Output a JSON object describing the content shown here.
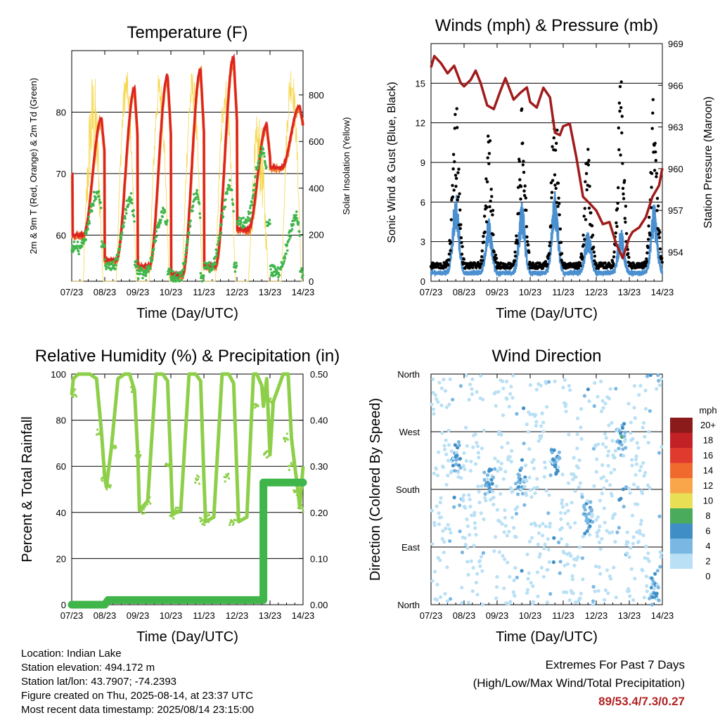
{
  "x_ticks": [
    "07/23",
    "08/23",
    "09/23",
    "10/23",
    "11/23",
    "12/23",
    "13/23",
    "14/23"
  ],
  "xlabel": "Time (Day/UTC)",
  "chart_data": [
    {
      "type": "line",
      "title": "Temperature (F)",
      "xlabel": "Time (Day/UTC)",
      "ylabel": "2m & 9m T (Red, Orange) & 2m Td (Green)",
      "ylabel_right": "Solar Insolation (Yellow)",
      "ylim": [
        52.5,
        90
      ],
      "ylim_right": [
        0,
        990
      ],
      "yticks": [
        60,
        70,
        80
      ],
      "yticks_right": [
        0,
        200,
        400,
        600,
        800
      ],
      "colors": {
        "t2m": "#dd2222",
        "t9m": "#f07b2a",
        "td": "#3fb54a",
        "solar": "#f5d64a"
      },
      "daily": [
        {
          "day": "07/23",
          "t_max": 70,
          "t_min": 61.5,
          "td_max": 67,
          "td_min": 60,
          "solar_max": 0
        },
        {
          "day": "08/23",
          "t_max": 79,
          "t_min": 60,
          "td_max": 67,
          "td_min": 58,
          "solar_max": 925
        },
        {
          "day": "09/23",
          "t_max": 84,
          "t_min": 56,
          "td_max": 66,
          "td_min": 55,
          "solar_max": 920
        },
        {
          "day": "10/23",
          "t_max": 86,
          "t_min": 55,
          "td_max": 64,
          "td_min": 54,
          "solar_max": 900
        },
        {
          "day": "11/23",
          "t_max": 87,
          "t_min": 53.5,
          "td_max": 67,
          "td_min": 53,
          "solar_max": 910
        },
        {
          "day": "12/23",
          "t_max": 89,
          "t_min": 55,
          "td_max": 68,
          "td_min": 55,
          "solar_max": 880
        },
        {
          "day": "13/23",
          "t_max": 78,
          "t_min": 61,
          "td_max": 74,
          "td_min": 62,
          "solar_max": 740
        },
        {
          "day": "14/23",
          "t_max": 81,
          "t_min": 71,
          "td_max": 63,
          "td_min": 54,
          "solar_max": 950
        }
      ]
    },
    {
      "type": "scatter",
      "title": "Winds (mph) & Pressure (mb)",
      "xlabel": "Time (Day/UTC)",
      "ylabel": "Sonic Wind & Gust (Blue, Black)",
      "ylabel_right": "Station Pressure (Maroon)",
      "ylim": [
        0,
        18
      ],
      "yticks": [
        0,
        3,
        6,
        9,
        12,
        15
      ],
      "ylim_right": [
        951.9,
        969
      ],
      "yticks_right": [
        954,
        957,
        960,
        963,
        966,
        969
      ],
      "colors": {
        "wind": "#4a90d0",
        "gust": "#000000",
        "pressure": "#a01c1c"
      },
      "daily": [
        {
          "day": "07/23",
          "wind_max": 2,
          "gust_max": 4
        },
        {
          "day": "08/23",
          "wind_max": 7,
          "gust_max": 14
        },
        {
          "day": "09/23",
          "wind_max": 5,
          "gust_max": 11
        },
        {
          "day": "10/23",
          "wind_max": 6,
          "gust_max": 13
        },
        {
          "day": "11/23",
          "wind_max": 7,
          "gust_max": 14
        },
        {
          "day": "12/23",
          "wind_max": 4,
          "gust_max": 10
        },
        {
          "day": "13/23",
          "wind_max": 4,
          "gust_max": 15
        },
        {
          "day": "14/23",
          "wind_max": 6,
          "gust_max": 15
        }
      ],
      "pressure": {
        "x": [
          0,
          0.1,
          0.3,
          0.5,
          0.7,
          0.9,
          1.0,
          1.2,
          1.35,
          1.5,
          1.7,
          1.9,
          2.1,
          2.25,
          2.5,
          2.7,
          2.9,
          3.0,
          3.2,
          3.4,
          3.6,
          3.75,
          3.9,
          4.0,
          4.2,
          4.4,
          4.6,
          4.8,
          5.0,
          5.2,
          5.4,
          5.6,
          5.8,
          6.0,
          6.1,
          6.3,
          6.5,
          6.7,
          6.9,
          7.0
        ],
        "y": [
          967.3,
          968.1,
          967.6,
          966.8,
          967.4,
          966.2,
          965.9,
          966.4,
          967.0,
          966.2,
          964.6,
          964.3,
          965.6,
          966.5,
          965.0,
          965.4,
          965.8,
          964.8,
          964.4,
          965.8,
          965.1,
          962.6,
          962.4,
          963.1,
          963.2,
          960.8,
          958.0,
          957.5,
          957.0,
          956.0,
          956.2,
          954.6,
          953.6,
          955.0,
          955.4,
          955.8,
          956.5,
          958.0,
          958.8,
          960.0
        ]
      }
    },
    {
      "type": "line",
      "title": "Relative Humidity (%) & Precipitation (in)",
      "xlabel": "Time (Day/UTC)",
      "ylabel": "Percent & Total Rainfall",
      "ylim": [
        0,
        100
      ],
      "yticks": [
        0,
        20,
        40,
        60,
        80,
        100
      ],
      "ylim_right": [
        0,
        0.5
      ],
      "yticks_right": [
        "0.00",
        "0.10",
        "0.20",
        "0.30",
        "0.40",
        "0.50"
      ],
      "colors": {
        "rh": "#8ecf4a",
        "precip": "#3fb54a"
      },
      "rh": {
        "x": [
          0,
          0.05,
          0.2,
          0.55,
          0.75,
          0.9,
          1.0,
          1.05,
          1.2,
          1.4,
          1.6,
          1.75,
          1.9,
          2.0,
          2.05,
          2.3,
          2.55,
          2.75,
          2.9,
          3.0,
          3.05,
          3.3,
          3.55,
          3.75,
          3.9,
          4.0,
          4.05,
          4.3,
          4.55,
          4.75,
          4.9,
          5.0,
          5.05,
          5.3,
          5.5,
          5.6,
          5.75,
          5.8,
          5.9,
          6.0,
          6.1,
          6.4,
          6.55,
          6.65,
          6.75,
          6.85,
          6.9,
          7.0
        ],
        "y": [
          91,
          98,
          100,
          100,
          98,
          75,
          55,
          51,
          68,
          98,
          100,
          100,
          93,
          65,
          41,
          45,
          100,
          100,
          97,
          60,
          39,
          41,
          100,
          100,
          97,
          55,
          36,
          38,
          100,
          100,
          96,
          56,
          36,
          38,
          100,
          100,
          95,
          86,
          98,
          65,
          88,
          100,
          100,
          72,
          60,
          49,
          42,
          60
        ]
      },
      "precip": {
        "x": [
          0,
          1.0,
          1.1,
          5.8,
          5.8,
          7.0
        ],
        "y": [
          0,
          0,
          0.01,
          0.01,
          0.265,
          0.265
        ]
      }
    },
    {
      "type": "scatter",
      "title": "Wind Direction",
      "xlabel": "Time (Day/UTC)",
      "ylabel": "Direction (Colored By Speed)",
      "ytick_labels": [
        "North",
        "East",
        "South",
        "West",
        "North"
      ],
      "legend_title": "mph",
      "legend_labels": [
        "20+",
        "18",
        "16",
        "14",
        "12",
        "10",
        "8",
        "6",
        "4",
        "2",
        "0"
      ],
      "legend_colors": [
        "#8b1a1a",
        "#c22226",
        "#e03a2f",
        "#f06a2e",
        "#f9a54a",
        "#e8df55",
        "#4aab5c",
        "#3f8fc6",
        "#7ab7e3",
        "#b9e0f5"
      ],
      "daily": [
        {
          "day": "07/23",
          "dominant": "North-West"
        },
        {
          "day": "08/23",
          "dominant": "South-West"
        },
        {
          "day": "09/23",
          "dominant": "South"
        },
        {
          "day": "10/23",
          "dominant": "South"
        },
        {
          "day": "11/23",
          "dominant": "South-West"
        },
        {
          "day": "12/23",
          "dominant": "South-East"
        },
        {
          "day": "13/23",
          "dominant": "West"
        },
        {
          "day": "14/23",
          "dominant": "North"
        }
      ]
    }
  ],
  "info": {
    "location": "Location: Indian Lake",
    "elevation": "Station elevation: 494.172 m",
    "latlon": "Station lat/lon: 43.7907; -74.2393",
    "created": "Figure created on Thu, 2025-08-14, at 23:37 UTC",
    "recent": "Most recent data timestamp: 2025/08/14 23:15:00"
  },
  "extremes": {
    "title": "Extremes For Past 7 Days",
    "subtitle": "(High/Low/Max Wind/Total Precipitation)",
    "values": "89/53.4/7.3/0.27"
  }
}
